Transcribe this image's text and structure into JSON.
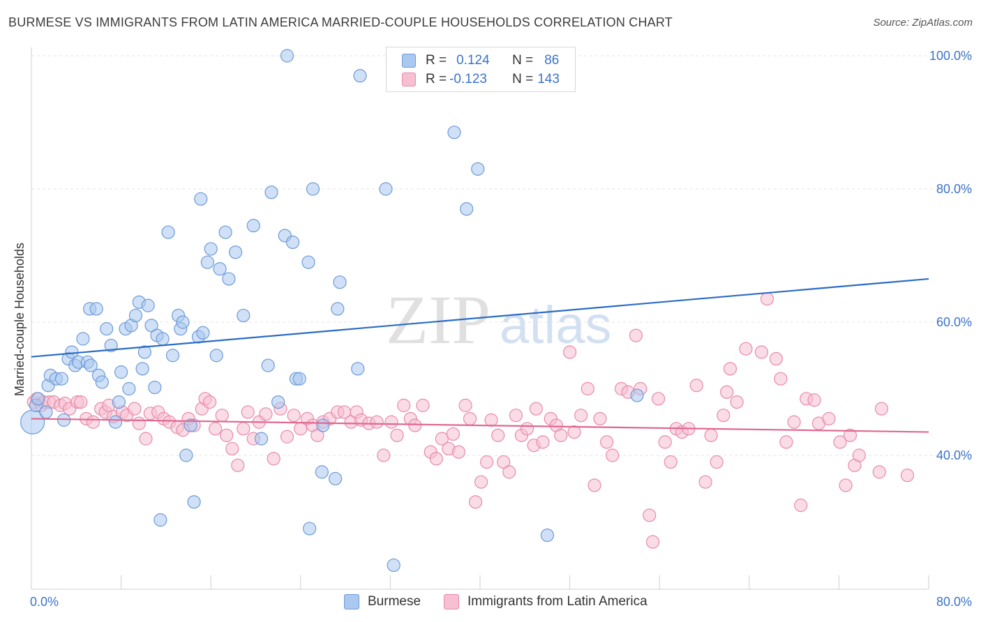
{
  "title": "BURMESE VS IMMIGRANTS FROM LATIN AMERICA MARRIED-COUPLE HOUSEHOLDS CORRELATION CHART",
  "source": "Source: ZipAtlas.com",
  "watermark": {
    "zip": "ZIP",
    "atlas": "atlas"
  },
  "legend": {
    "r_label": "R =",
    "n_label": "N =",
    "rows": [
      {
        "r": "0.124",
        "n": "86"
      },
      {
        "r": "-0.123",
        "n": "143"
      }
    ]
  },
  "colors": {
    "blue_fill": "#aac8f0",
    "blue_stroke": "#6d9ad6",
    "blue_line": "#2a6bc8",
    "pink_fill": "#f6c0d2",
    "pink_stroke": "#e88aa8",
    "pink_line": "#e0688f",
    "axis_label": "#3b73c8"
  },
  "chart_data": {
    "type": "scatter",
    "title": "BURMESE VS IMMIGRANTS FROM LATIN AMERICA MARRIED-COUPLE HOUSEHOLDS CORRELATION CHART",
    "xlabel": "",
    "ylabel": "Married-couple Households",
    "xlim": [
      0,
      80
    ],
    "ylim": [
      20,
      102
    ],
    "x_tick_labels": [
      "0.0%",
      "80.0%"
    ],
    "y_ticks": [
      40,
      60,
      80,
      100
    ],
    "y_tick_labels": [
      "40.0%",
      "60.0%",
      "80.0%",
      "100.0%"
    ],
    "grid": true,
    "legend_position": "top-center",
    "series": [
      {
        "name": "Burmese",
        "trend": [
          [
            0,
            54.8
          ],
          [
            80,
            66.5
          ]
        ],
        "points": [
          [
            0.1,
            45
          ],
          [
            0.4,
            47.5
          ],
          [
            0.6,
            48.5
          ],
          [
            1.3,
            46.5
          ],
          [
            1.5,
            50.5
          ],
          [
            1.7,
            52
          ],
          [
            2.2,
            51.5
          ],
          [
            2.7,
            51.5
          ],
          [
            2.9,
            45.3
          ],
          [
            3.3,
            54.5
          ],
          [
            3.6,
            55.5
          ],
          [
            3.9,
            53.5
          ],
          [
            4.2,
            54
          ],
          [
            4.6,
            57.5
          ],
          [
            5.0,
            54
          ],
          [
            5.3,
            53.5
          ],
          [
            5.2,
            62
          ],
          [
            5.8,
            62
          ],
          [
            6.0,
            52
          ],
          [
            6.3,
            51
          ],
          [
            6.7,
            59
          ],
          [
            7.1,
            56.5
          ],
          [
            7.5,
            45
          ],
          [
            7.8,
            48
          ],
          [
            8.0,
            52.5
          ],
          [
            8.4,
            59
          ],
          [
            8.7,
            50
          ],
          [
            8.9,
            59.5
          ],
          [
            9.3,
            61
          ],
          [
            9.6,
            63
          ],
          [
            9.9,
            53
          ],
          [
            10.1,
            55.5
          ],
          [
            10.4,
            62.5
          ],
          [
            10.7,
            59.5
          ],
          [
            11.0,
            50.2
          ],
          [
            11.2,
            58
          ],
          [
            11.5,
            30.3
          ],
          [
            11.7,
            57.5
          ],
          [
            12.2,
            73.5
          ],
          [
            12.6,
            55
          ],
          [
            13.1,
            61
          ],
          [
            13.3,
            59
          ],
          [
            13.5,
            60
          ],
          [
            13.8,
            40
          ],
          [
            14.2,
            44.5
          ],
          [
            14.5,
            33
          ],
          [
            14.9,
            57.8
          ],
          [
            15.1,
            78.5
          ],
          [
            15.3,
            58.4
          ],
          [
            15.7,
            69
          ],
          [
            16.0,
            71
          ],
          [
            16.5,
            55
          ],
          [
            16.8,
            68
          ],
          [
            17.3,
            73.5
          ],
          [
            17.6,
            66.5
          ],
          [
            18.2,
            70.5
          ],
          [
            18.9,
            61
          ],
          [
            19.8,
            74.5
          ],
          [
            20.5,
            42.5
          ],
          [
            21.1,
            53.5
          ],
          [
            21.4,
            79.5
          ],
          [
            22.0,
            48
          ],
          [
            22.6,
            73
          ],
          [
            22.8,
            100
          ],
          [
            23.3,
            72
          ],
          [
            23.6,
            51.5
          ],
          [
            23.9,
            51.5
          ],
          [
            24.7,
            69
          ],
          [
            24.8,
            29
          ],
          [
            25.1,
            80
          ],
          [
            25.9,
            37.5
          ],
          [
            26.0,
            44.5
          ],
          [
            27.1,
            36.5
          ],
          [
            27.5,
            66
          ],
          [
            27.3,
            62
          ],
          [
            29.3,
            97
          ],
          [
            29.1,
            53
          ],
          [
            31.6,
            80
          ],
          [
            32.3,
            23.5
          ],
          [
            37.7,
            88.5
          ],
          [
            38.8,
            77
          ],
          [
            39.8,
            83
          ],
          [
            46.0,
            28
          ],
          [
            54.0,
            49
          ]
        ]
      },
      {
        "name": "Immigrants from Latin America",
        "trend": [
          [
            0,
            45.5
          ],
          [
            80,
            43.5
          ]
        ],
        "points": [
          [
            0.2,
            48
          ],
          [
            0.5,
            48.5
          ],
          [
            0.9,
            47.5
          ],
          [
            1.1,
            48
          ],
          [
            1.6,
            48
          ],
          [
            2.0,
            48
          ],
          [
            2.6,
            47.5
          ],
          [
            3.0,
            47.8
          ],
          [
            3.4,
            47
          ],
          [
            4.1,
            48
          ],
          [
            4.4,
            48
          ],
          [
            4.9,
            45.5
          ],
          [
            5.5,
            45
          ],
          [
            6.2,
            47
          ],
          [
            6.6,
            46.5
          ],
          [
            6.9,
            47.5
          ],
          [
            7.3,
            45.8
          ],
          [
            8.1,
            46.5
          ],
          [
            8.5,
            46
          ],
          [
            9.2,
            47
          ],
          [
            9.6,
            44.8
          ],
          [
            10.2,
            42.5
          ],
          [
            10.6,
            46.3
          ],
          [
            11.3,
            46.5
          ],
          [
            11.8,
            45.5
          ],
          [
            12.3,
            45
          ],
          [
            13.0,
            44.2
          ],
          [
            13.5,
            43.8
          ],
          [
            14.0,
            45.5
          ],
          [
            14.5,
            44.5
          ],
          [
            15.2,
            47
          ],
          [
            15.5,
            48.5
          ],
          [
            15.9,
            48
          ],
          [
            16.4,
            44
          ],
          [
            17.0,
            46
          ],
          [
            17.4,
            43
          ],
          [
            17.9,
            41
          ],
          [
            18.4,
            38.5
          ],
          [
            18.9,
            44
          ],
          [
            19.3,
            46.5
          ],
          [
            19.8,
            42.5
          ],
          [
            20.3,
            45
          ],
          [
            20.9,
            46.2
          ],
          [
            21.6,
            39.5
          ],
          [
            22.2,
            47
          ],
          [
            22.8,
            42.8
          ],
          [
            23.4,
            46
          ],
          [
            24.0,
            44
          ],
          [
            24.6,
            45.5
          ],
          [
            25.1,
            44.5
          ],
          [
            25.5,
            43
          ],
          [
            26.0,
            45
          ],
          [
            26.6,
            45.5
          ],
          [
            27.3,
            46.5
          ],
          [
            27.9,
            46.5
          ],
          [
            28.5,
            45
          ],
          [
            29.0,
            46.5
          ],
          [
            29.4,
            45.3
          ],
          [
            30.1,
            44.8
          ],
          [
            30.8,
            45
          ],
          [
            31.4,
            40
          ],
          [
            32.1,
            45
          ],
          [
            32.6,
            43
          ],
          [
            33.2,
            47.5
          ],
          [
            33.8,
            45.5
          ],
          [
            34.2,
            44.5
          ],
          [
            34.9,
            47.5
          ],
          [
            35.6,
            40.5
          ],
          [
            36.1,
            39.5
          ],
          [
            36.6,
            42.5
          ],
          [
            37.2,
            41
          ],
          [
            37.6,
            43.2
          ],
          [
            38.1,
            40.5
          ],
          [
            38.7,
            47.5
          ],
          [
            39.1,
            45.5
          ],
          [
            39.6,
            33
          ],
          [
            40.1,
            36
          ],
          [
            40.6,
            39
          ],
          [
            41.0,
            45.3
          ],
          [
            41.6,
            43
          ],
          [
            42.1,
            39
          ],
          [
            42.6,
            37.5
          ],
          [
            43.2,
            46
          ],
          [
            43.7,
            43
          ],
          [
            44.2,
            44
          ],
          [
            44.8,
            41.5
          ],
          [
            45.0,
            47
          ],
          [
            45.6,
            42
          ],
          [
            46.3,
            45.5
          ],
          [
            46.8,
            44.5
          ],
          [
            47.2,
            43
          ],
          [
            48.0,
            55.5
          ],
          [
            48.4,
            43.5
          ],
          [
            49.0,
            46
          ],
          [
            49.6,
            50
          ],
          [
            50.2,
            35.5
          ],
          [
            50.7,
            45.5
          ],
          [
            51.3,
            42
          ],
          [
            51.8,
            40
          ],
          [
            52.6,
            50
          ],
          [
            53.2,
            49.5
          ],
          [
            53.9,
            58
          ],
          [
            54.3,
            50
          ],
          [
            55.1,
            31
          ],
          [
            55.4,
            27
          ],
          [
            55.9,
            48.5
          ],
          [
            56.5,
            42
          ],
          [
            57.0,
            39
          ],
          [
            57.5,
            44
          ],
          [
            58.0,
            43.5
          ],
          [
            58.6,
            44
          ],
          [
            59.3,
            50.5
          ],
          [
            60.1,
            36
          ],
          [
            60.6,
            43
          ],
          [
            61.1,
            39
          ],
          [
            61.7,
            46
          ],
          [
            62.0,
            49.5
          ],
          [
            62.3,
            53
          ],
          [
            62.9,
            48
          ],
          [
            63.7,
            56
          ],
          [
            65.1,
            55.5
          ],
          [
            65.6,
            63.5
          ],
          [
            66.4,
            54.5
          ],
          [
            66.8,
            51.5
          ],
          [
            67.3,
            42
          ],
          [
            68.0,
            45
          ],
          [
            68.6,
            32.5
          ],
          [
            69.1,
            48.5
          ],
          [
            69.8,
            48.3
          ],
          [
            70.2,
            44.8
          ],
          [
            71.1,
            45.5
          ],
          [
            72.1,
            42
          ],
          [
            72.6,
            35.5
          ],
          [
            73.0,
            43
          ],
          [
            73.4,
            38.5
          ],
          [
            73.8,
            40
          ],
          [
            75.6,
            37.5
          ],
          [
            75.8,
            47
          ],
          [
            78.1,
            37
          ]
        ]
      }
    ]
  },
  "bottom_legend": [
    {
      "label": "Burmese"
    },
    {
      "label": "Immigrants from Latin America"
    }
  ]
}
